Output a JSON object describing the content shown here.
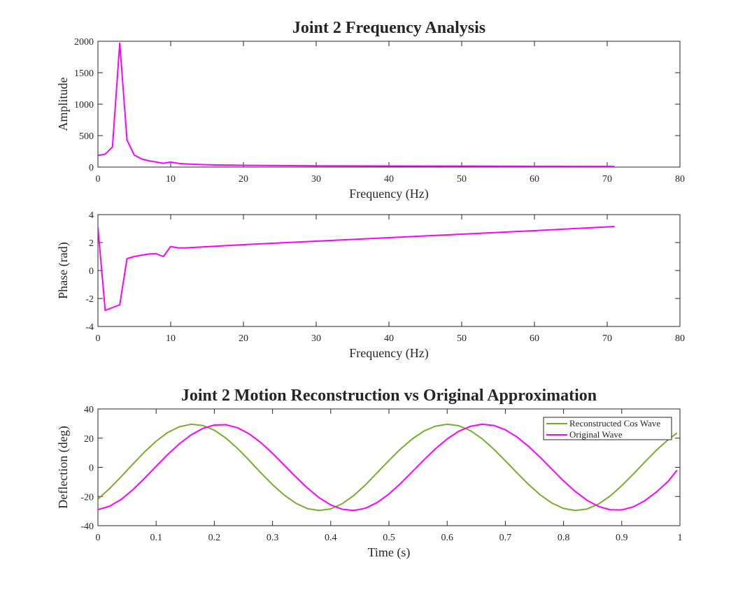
{
  "chart_data": [
    {
      "type": "line",
      "title": "Joint 2 Frequency Analysis",
      "xlabel": "Frequency (Hz)",
      "ylabel": "Amplitude",
      "xlim": [
        0,
        80
      ],
      "ylim": [
        0,
        2000
      ],
      "xticks": [
        "0",
        "10",
        "20",
        "30",
        "40",
        "50",
        "60",
        "70",
        "80"
      ],
      "yticks": [
        "0",
        "500",
        "1000",
        "1500",
        "2000"
      ],
      "grid": false,
      "series": [
        {
          "color": "#ff00ff",
          "x": [
            0,
            1,
            2,
            3,
            4,
            5,
            6,
            7,
            8,
            9,
            10,
            11,
            12,
            14,
            16,
            20,
            25,
            30,
            40,
            50,
            60,
            70,
            71
          ],
          "y": [
            185,
            205,
            320,
            1970,
            430,
            190,
            130,
            100,
            80,
            60,
            80,
            60,
            50,
            40,
            35,
            28,
            24,
            20,
            17,
            15,
            13,
            11,
            10
          ]
        }
      ]
    },
    {
      "type": "line",
      "title": "",
      "xlabel": "Frequency (Hz)",
      "ylabel": "Phase (rad)",
      "xlim": [
        0,
        80
      ],
      "ylim": [
        -4,
        4
      ],
      "xticks": [
        "0",
        "10",
        "20",
        "30",
        "40",
        "50",
        "60",
        "70",
        "80"
      ],
      "yticks": [
        "-4",
        "-2",
        "0",
        "2",
        "4"
      ],
      "grid": false,
      "series": [
        {
          "color": "#ff00ff",
          "x": [
            0,
            1,
            2,
            3,
            4,
            5,
            6,
            7,
            8,
            9,
            10,
            11,
            12,
            20,
            30,
            40,
            50,
            60,
            71
          ],
          "y": [
            3.1,
            -2.85,
            -2.65,
            -2.45,
            0.85,
            1.0,
            1.1,
            1.18,
            1.2,
            1.0,
            1.72,
            1.62,
            1.62,
            1.85,
            2.1,
            2.35,
            2.6,
            2.85,
            3.15
          ]
        }
      ]
    },
    {
      "type": "line",
      "title": "Joint 2 Motion Reconstruction vs Original Approximation",
      "xlabel": "Time (s)",
      "ylabel": "Deflection (deg)",
      "xlim": [
        0,
        1
      ],
      "ylim": [
        -40,
        40
      ],
      "xticks": [
        "0",
        "0.1",
        "0.2",
        "0.3",
        "0.4",
        "0.5",
        "0.6",
        "0.7",
        "0.8",
        "0.9",
        "1"
      ],
      "yticks": [
        "-40",
        "-20",
        "0",
        "20",
        "40"
      ],
      "grid": false,
      "legend": "top-right",
      "series": [
        {
          "name": "Reconstructed Cos Wave",
          "color": "#77ac30",
          "x": [
            0.0,
            0.02,
            0.04,
            0.06,
            0.08,
            0.1,
            0.12,
            0.14,
            0.16,
            0.18,
            0.2,
            0.22,
            0.24,
            0.26,
            0.28,
            0.3,
            0.32,
            0.34,
            0.36,
            0.38,
            0.4,
            0.42,
            0.44,
            0.46,
            0.48,
            0.5,
            0.52,
            0.54,
            0.56,
            0.58,
            0.6,
            0.62,
            0.64,
            0.66,
            0.68,
            0.7,
            0.72,
            0.74,
            0.76,
            0.78,
            0.8,
            0.82,
            0.84,
            0.86,
            0.88,
            0.9,
            0.92,
            0.94,
            0.96,
            0.98,
            0.995
          ],
          "y": [
            -21.8,
            -14.6,
            -6.4,
            2.2,
            10.5,
            17.9,
            23.9,
            27.8,
            29.5,
            28.7,
            25.4,
            20.0,
            12.9,
            4.7,
            -3.8,
            -11.9,
            -19.0,
            -24.6,
            -28.3,
            -29.6,
            -28.5,
            -24.9,
            -19.2,
            -11.9,
            -3.6,
            4.7,
            12.6,
            19.4,
            24.8,
            28.2,
            29.5,
            28.5,
            25.1,
            19.6,
            12.5,
            4.5,
            -3.8,
            -11.8,
            -18.9,
            -24.5,
            -28.2,
            -29.6,
            -28.6,
            -25.2,
            -19.7,
            -12.6,
            -4.6,
            3.8,
            11.9,
            19.0,
            23.5
          ]
        },
        {
          "name": "Original Wave",
          "color": "#ff00ff",
          "x": [
            0.0,
            0.02,
            0.04,
            0.06,
            0.08,
            0.1,
            0.12,
            0.14,
            0.16,
            0.18,
            0.2,
            0.22,
            0.24,
            0.26,
            0.28,
            0.3,
            0.32,
            0.34,
            0.36,
            0.38,
            0.4,
            0.42,
            0.44,
            0.46,
            0.48,
            0.5,
            0.52,
            0.54,
            0.56,
            0.58,
            0.6,
            0.62,
            0.64,
            0.66,
            0.68,
            0.7,
            0.72,
            0.74,
            0.76,
            0.78,
            0.8,
            0.82,
            0.84,
            0.86,
            0.88,
            0.9,
            0.92,
            0.94,
            0.96,
            0.98,
            0.995
          ],
          "y": [
            -29.0,
            -26.7,
            -22.0,
            -15.4,
            -7.6,
            0.7,
            8.8,
            16.1,
            22.2,
            26.6,
            29.0,
            29.2,
            27.1,
            22.9,
            16.9,
            9.6,
            1.5,
            -6.6,
            -14.2,
            -20.8,
            -25.8,
            -28.8,
            -29.6,
            -28.0,
            -24.1,
            -18.3,
            -11.1,
            -3.1,
            5.0,
            12.7,
            19.4,
            24.7,
            28.1,
            29.5,
            28.7,
            25.7,
            20.8,
            14.3,
            6.8,
            -1.3,
            -9.3,
            -16.5,
            -22.5,
            -26.8,
            -29.1,
            -29.2,
            -27.1,
            -22.8,
            -16.8,
            -9.5,
            -2.0
          ]
        }
      ]
    }
  ]
}
